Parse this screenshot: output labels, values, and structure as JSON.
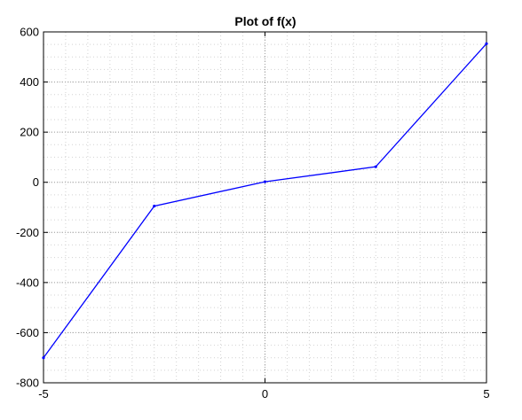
{
  "chart_data": {
    "type": "line",
    "title": "Plot of f(x)",
    "xlabel": "",
    "ylabel": "",
    "xlim": [
      -5,
      5
    ],
    "ylim": [
      -800,
      600
    ],
    "xticks": [
      -5,
      0,
      5
    ],
    "yticks": [
      -800,
      -600,
      -400,
      -200,
      0,
      200,
      400,
      600
    ],
    "grid": true,
    "minor_grid": true,
    "x_minor_step": 0.5,
    "y_minor_step": 50,
    "series": [
      {
        "color": "#0000ff",
        "x": [
          -5,
          -2.5,
          0,
          2.5,
          5
        ],
        "y": [
          -700,
          -95,
          2,
          62,
          553
        ]
      }
    ]
  }
}
